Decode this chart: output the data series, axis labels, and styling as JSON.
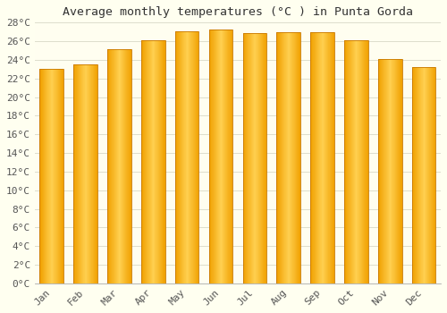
{
  "title": "Average monthly temperatures (°C ) in Punta Gorda",
  "months": [
    "Jan",
    "Feb",
    "Mar",
    "Apr",
    "May",
    "Jun",
    "Jul",
    "Aug",
    "Sep",
    "Oct",
    "Nov",
    "Dec"
  ],
  "values": [
    23.0,
    23.5,
    25.1,
    26.1,
    27.1,
    27.3,
    26.9,
    27.0,
    27.0,
    26.1,
    24.1,
    23.2
  ],
  "bar_color_left": "#F0A000",
  "bar_color_center": "#FFD050",
  "bar_color_right": "#E89000",
  "background_color": "#FFFFF0",
  "plot_bg_color": "#FFFEF0",
  "grid_color": "#DDDDCC",
  "title_color": "#333333",
  "tick_label_color": "#555555",
  "ylim": [
    0,
    28
  ],
  "yticks": [
    0,
    2,
    4,
    6,
    8,
    10,
    12,
    14,
    16,
    18,
    20,
    22,
    24,
    26,
    28
  ],
  "ytick_labels": [
    "0°C",
    "2°C",
    "4°C",
    "6°C",
    "8°C",
    "10°C",
    "12°C",
    "14°C",
    "16°C",
    "18°C",
    "20°C",
    "22°C",
    "24°C",
    "26°C",
    "28°C"
  ],
  "title_fontsize": 9.5,
  "tick_fontsize": 8,
  "figsize": [
    5.0,
    3.5
  ],
  "dpi": 100
}
